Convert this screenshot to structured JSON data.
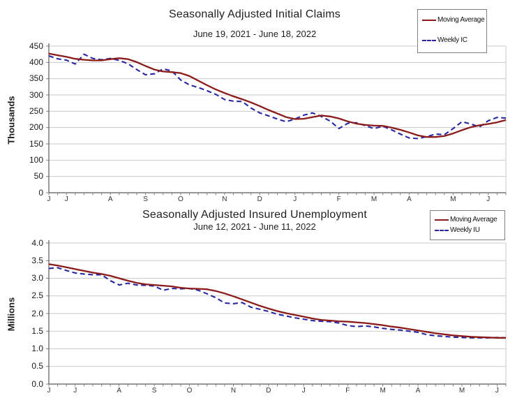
{
  "colors": {
    "moving_average": "#8b1a1a",
    "weekly": "#2727a3",
    "gridline": "#c9c9c9",
    "axis": "#595959",
    "tick_mark": "#808080",
    "legend_border": "#808080",
    "background": "#ffffff"
  },
  "chart_data": [
    {
      "type": "line",
      "title": "Seasonally Adjusted Initial Claims",
      "subtitle": "June 19, 2021 - June 18, 2022",
      "ylabel": "Thousands",
      "ylim": [
        0,
        450
      ],
      "y_tick_step": 50,
      "y_tick_labels": [
        "450",
        "400",
        "350",
        "300",
        "250",
        "200",
        "150",
        "100",
        "50",
        "0"
      ],
      "weeks": 53,
      "grid": true,
      "legend_position": "top-right",
      "x_month_labels": [
        {
          "label": "J",
          "week": 0
        },
        {
          "label": "J",
          "week": 2
        },
        {
          "label": "A",
          "week": 7
        },
        {
          "label": "S",
          "week": 11
        },
        {
          "label": "O",
          "week": 15
        },
        {
          "label": "N",
          "week": 20
        },
        {
          "label": "D",
          "week": 24
        },
        {
          "label": "J",
          "week": 28
        },
        {
          "label": "F",
          "week": 33
        },
        {
          "label": "M",
          "week": 37
        },
        {
          "label": "A",
          "week": 41
        },
        {
          "label": "M",
          "week": 46
        },
        {
          "label": "J",
          "week": 50
        }
      ],
      "legend": [
        {
          "label": "Moving Average",
          "style": "solid",
          "color": "#8b1a1a"
        },
        {
          "label": "Weekly IC",
          "style": "dashed",
          "color": "#2727a3"
        }
      ],
      "series": [
        {
          "name": "Moving Average",
          "style": "solid",
          "color": "#8b1a1a",
          "values": [
            427,
            422,
            417,
            411,
            408,
            406,
            406,
            410,
            413,
            410,
            401,
            389,
            378,
            372,
            370,
            367,
            358,
            344,
            330,
            317,
            306,
            296,
            287,
            277,
            266,
            254,
            243,
            232,
            226,
            227,
            232,
            237,
            234,
            228,
            219,
            212,
            208,
            206,
            205,
            200,
            193,
            185,
            176,
            171,
            171,
            174,
            182,
            192,
            201,
            207,
            211,
            216,
            223
          ]
        },
        {
          "name": "Weekly IC",
          "style": "dashed",
          "color": "#2727a3",
          "values": [
            420,
            411,
            407,
            395,
            425,
            412,
            408,
            412,
            406,
            396,
            378,
            362,
            365,
            380,
            374,
            346,
            331,
            323,
            313,
            302,
            286,
            281,
            280,
            260,
            245,
            236,
            226,
            218,
            226,
            238,
            245,
            234,
            220,
            197,
            213,
            215,
            206,
            197,
            204,
            193,
            180,
            168,
            166,
            172,
            180,
            178,
            197,
            218,
            211,
            202,
            221,
            231,
            229
          ]
        }
      ]
    },
    {
      "type": "line",
      "title": "Seasonally Adjusted Insured Unemployment",
      "subtitle": "June 12, 2021 - June 11, 2022",
      "ylabel": "Millions",
      "ylim": [
        0.0,
        4.0
      ],
      "y_tick_step": 0.5,
      "y_tick_labels": [
        "4.0",
        "3.5",
        "3.0",
        "2.5",
        "2.0",
        "1.5",
        "1.0",
        "0.5",
        "0.0"
      ],
      "weeks": 53,
      "grid": true,
      "legend_position": "top-right",
      "x_month_labels": [
        {
          "label": "J",
          "week": 0
        },
        {
          "label": "J",
          "week": 3
        },
        {
          "label": "A",
          "week": 8
        },
        {
          "label": "S",
          "week": 12
        },
        {
          "label": "O",
          "week": 16
        },
        {
          "label": "N",
          "week": 21
        },
        {
          "label": "D",
          "week": 25
        },
        {
          "label": "J",
          "week": 29
        },
        {
          "label": "F",
          "week": 34
        },
        {
          "label": "M",
          "week": 38
        },
        {
          "label": "A",
          "week": 42
        },
        {
          "label": "M",
          "week": 47
        },
        {
          "label": "J",
          "week": 51
        }
      ],
      "legend": [
        {
          "label": "Moving Average",
          "style": "solid",
          "color": "#8b1a1a"
        },
        {
          "label": "Weekly IU",
          "style": "dashed",
          "color": "#2727a3"
        }
      ],
      "series": [
        {
          "name": "Moving Average",
          "style": "solid",
          "color": "#8b1a1a",
          "values": [
            3.4,
            3.36,
            3.31,
            3.26,
            3.21,
            3.16,
            3.12,
            3.07,
            3.0,
            2.93,
            2.87,
            2.83,
            2.81,
            2.79,
            2.77,
            2.73,
            2.71,
            2.7,
            2.69,
            2.64,
            2.57,
            2.49,
            2.4,
            2.31,
            2.22,
            2.14,
            2.07,
            2.01,
            1.96,
            1.91,
            1.86,
            1.82,
            1.8,
            1.78,
            1.77,
            1.75,
            1.73,
            1.7,
            1.67,
            1.63,
            1.6,
            1.56,
            1.52,
            1.48,
            1.44,
            1.41,
            1.38,
            1.36,
            1.34,
            1.33,
            1.32,
            1.31,
            1.31
          ]
        },
        {
          "name": "Weekly IU",
          "style": "dashed",
          "color": "#2727a3",
          "values": [
            3.28,
            3.3,
            3.22,
            3.15,
            3.12,
            3.1,
            3.1,
            2.93,
            2.81,
            2.86,
            2.81,
            2.8,
            2.78,
            2.66,
            2.71,
            2.7,
            2.71,
            2.66,
            2.56,
            2.45,
            2.3,
            2.28,
            2.31,
            2.18,
            2.12,
            2.06,
            1.98,
            1.93,
            1.88,
            1.84,
            1.8,
            1.78,
            1.77,
            1.73,
            1.66,
            1.63,
            1.65,
            1.62,
            1.58,
            1.55,
            1.53,
            1.5,
            1.47,
            1.4,
            1.37,
            1.35,
            1.33,
            1.32,
            1.31,
            1.31,
            1.31,
            1.32,
            1.31
          ]
        }
      ]
    }
  ]
}
